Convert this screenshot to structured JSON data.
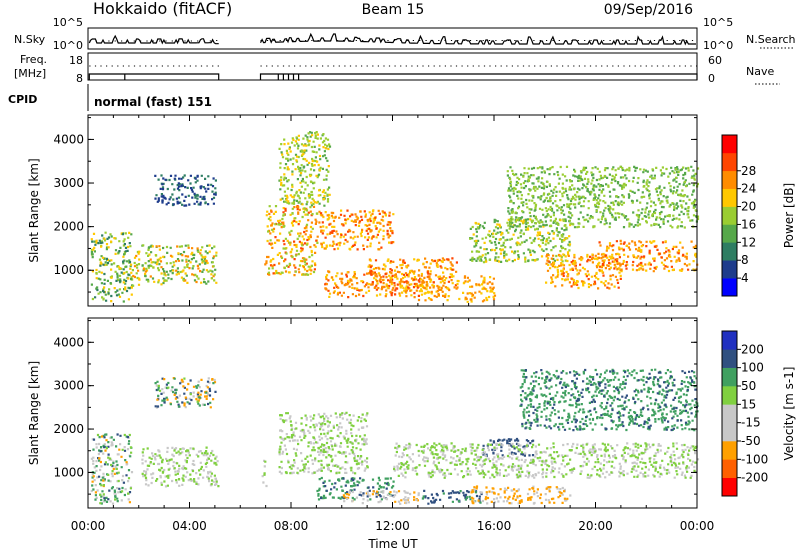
{
  "header": {
    "title": "Hokkaido (fitACF)",
    "beam": "Beam 15",
    "date": "09/Sep/2016"
  },
  "noise_panel": {
    "left_label": "N.Sky",
    "right_label": "N.Search",
    "left_ticks": [
      "10^5",
      "10^0"
    ],
    "right_ticks": [
      "10^5",
      "10^0"
    ]
  },
  "freq_panel": {
    "left_label_line1": "Freq.",
    "left_label_line2": "[MHz]",
    "right_label": "Nave",
    "left_ticks": [
      "18",
      "8"
    ],
    "right_ticks": [
      "60",
      "0"
    ]
  },
  "cpid": {
    "label": "CPID",
    "mode": "normal (fast) 151"
  },
  "colors": {
    "power": [
      "#0000ff",
      "#1e3c8c",
      "#2e7d62",
      "#56a84a",
      "#9acd32",
      "#ffc800",
      "#ff8c00",
      "#ff4500",
      "#ff0000"
    ],
    "velocity": [
      "#ff0000",
      "#ff6000",
      "#ffa000",
      "#c8c8c8",
      "#c8c8c8",
      "#80d040",
      "#40a060",
      "#305080",
      "#2030c0"
    ]
  },
  "chart_data": [
    {
      "type": "heatmap",
      "name": "power",
      "ylabel": "Slant Range [km]",
      "yticks": [
        "1000",
        "2000",
        "3000",
        "4000"
      ],
      "ylim": [
        180,
        4560
      ],
      "xlim_hours": [
        0,
        24
      ],
      "colorbar_label": "Power [dB]",
      "colorbar_ticks": [
        "4",
        "8",
        "12",
        "16",
        "20",
        "24",
        "28"
      ],
      "colorbar_range": [
        0,
        32
      ],
      "regions": [
        {
          "t": [
            0.1,
            1.7
          ],
          "r": [
            300,
            1900
          ],
          "v": [
            8,
            24
          ]
        },
        {
          "t": [
            1.7,
            2.0
          ],
          "r": [
            600,
            1500
          ],
          "v": [
            14,
            26
          ]
        },
        {
          "t": [
            2.1,
            5.1
          ],
          "r": [
            700,
            1600
          ],
          "v": [
            12,
            26
          ]
        },
        {
          "t": [
            2.6,
            5.0
          ],
          "r": [
            2500,
            3200
          ],
          "v": [
            4,
            12
          ]
        },
        {
          "t": [
            6.8,
            7.0
          ],
          "r": [
            1100,
            1300
          ],
          "v": [
            24,
            30
          ]
        },
        {
          "t": [
            7.0,
            9.0
          ],
          "r": [
            900,
            2500
          ],
          "v": [
            16,
            30
          ]
        },
        {
          "t": [
            7.5,
            9.5
          ],
          "r": [
            2500,
            4200
          ],
          "v": [
            14,
            22
          ]
        },
        {
          "t": [
            9.0,
            12.0
          ],
          "r": [
            1500,
            2400
          ],
          "v": [
            20,
            30
          ]
        },
        {
          "t": [
            9.3,
            13.0
          ],
          "r": [
            400,
            1000
          ],
          "v": [
            22,
            30
          ]
        },
        {
          "t": [
            11.0,
            14.5
          ],
          "r": [
            600,
            1300
          ],
          "v": [
            20,
            30
          ]
        },
        {
          "t": [
            13.0,
            16.0
          ],
          "r": [
            300,
            900
          ],
          "v": [
            20,
            28
          ]
        },
        {
          "t": [
            15.0,
            19.0
          ],
          "r": [
            1200,
            2200
          ],
          "v": [
            12,
            22
          ]
        },
        {
          "t": [
            18.0,
            21.0
          ],
          "r": [
            600,
            1400
          ],
          "v": [
            20,
            30
          ]
        },
        {
          "t": [
            20.0,
            24.0
          ],
          "r": [
            1000,
            1700
          ],
          "v": [
            20,
            30
          ]
        },
        {
          "t": [
            16.5,
            24.0
          ],
          "r": [
            2000,
            3400
          ],
          "v": [
            12,
            20
          ]
        }
      ]
    },
    {
      "type": "heatmap",
      "name": "velocity",
      "ylabel": "Slant Range [km]",
      "yticks": [
        "1000",
        "2000",
        "3000",
        "4000"
      ],
      "ylim": [
        180,
        4560
      ],
      "xlim_hours": [
        0,
        24
      ],
      "xticks": [
        "00:00",
        "04:00",
        "08:00",
        "12:00",
        "16:00",
        "20:00",
        "00:00"
      ],
      "xlabel": "Time UT",
      "colorbar_label": "Velocity [m s-1]",
      "colorbar_ticks": [
        "-200",
        "-100",
        "-50",
        "-15",
        "15",
        "50",
        "100",
        "200"
      ],
      "regions": [
        {
          "t": [
            0.1,
            1.7
          ],
          "r": [
            300,
            1900
          ],
          "v": [
            -60,
            60
          ]
        },
        {
          "t": [
            2.1,
            5.1
          ],
          "r": [
            700,
            1600
          ],
          "v": [
            -15,
            15
          ]
        },
        {
          "t": [
            2.6,
            5.0
          ],
          "r": [
            2500,
            3200
          ],
          "v": [
            -100,
            100
          ]
        },
        {
          "t": [
            6.8,
            7.0
          ],
          "r": [
            700,
            1300
          ],
          "v": [
            -15,
            15
          ]
        },
        {
          "t": [
            7.5,
            11.0
          ],
          "r": [
            1000,
            2400
          ],
          "v": [
            -15,
            15
          ]
        },
        {
          "t": [
            9.0,
            12.0
          ],
          "r": [
            400,
            900
          ],
          "v": [
            20,
            60
          ]
        },
        {
          "t": [
            10.0,
            13.0
          ],
          "r": [
            300,
            600
          ],
          "v": [
            -60,
            -30
          ]
        },
        {
          "t": [
            13.0,
            15.5
          ],
          "r": [
            300,
            600
          ],
          "v": [
            40,
            90
          ]
        },
        {
          "t": [
            15.5,
            17.5
          ],
          "r": [
            1400,
            1800
          ],
          "v": [
            60,
            100
          ]
        },
        {
          "t": [
            12.0,
            24.0
          ],
          "r": [
            900,
            1700
          ],
          "v": [
            -15,
            15
          ]
        },
        {
          "t": [
            15.0,
            19.0
          ],
          "r": [
            300,
            700
          ],
          "v": [
            -80,
            -30
          ]
        },
        {
          "t": [
            17.0,
            24.0
          ],
          "r": [
            2000,
            3400
          ],
          "v": [
            20,
            60
          ]
        }
      ]
    }
  ]
}
